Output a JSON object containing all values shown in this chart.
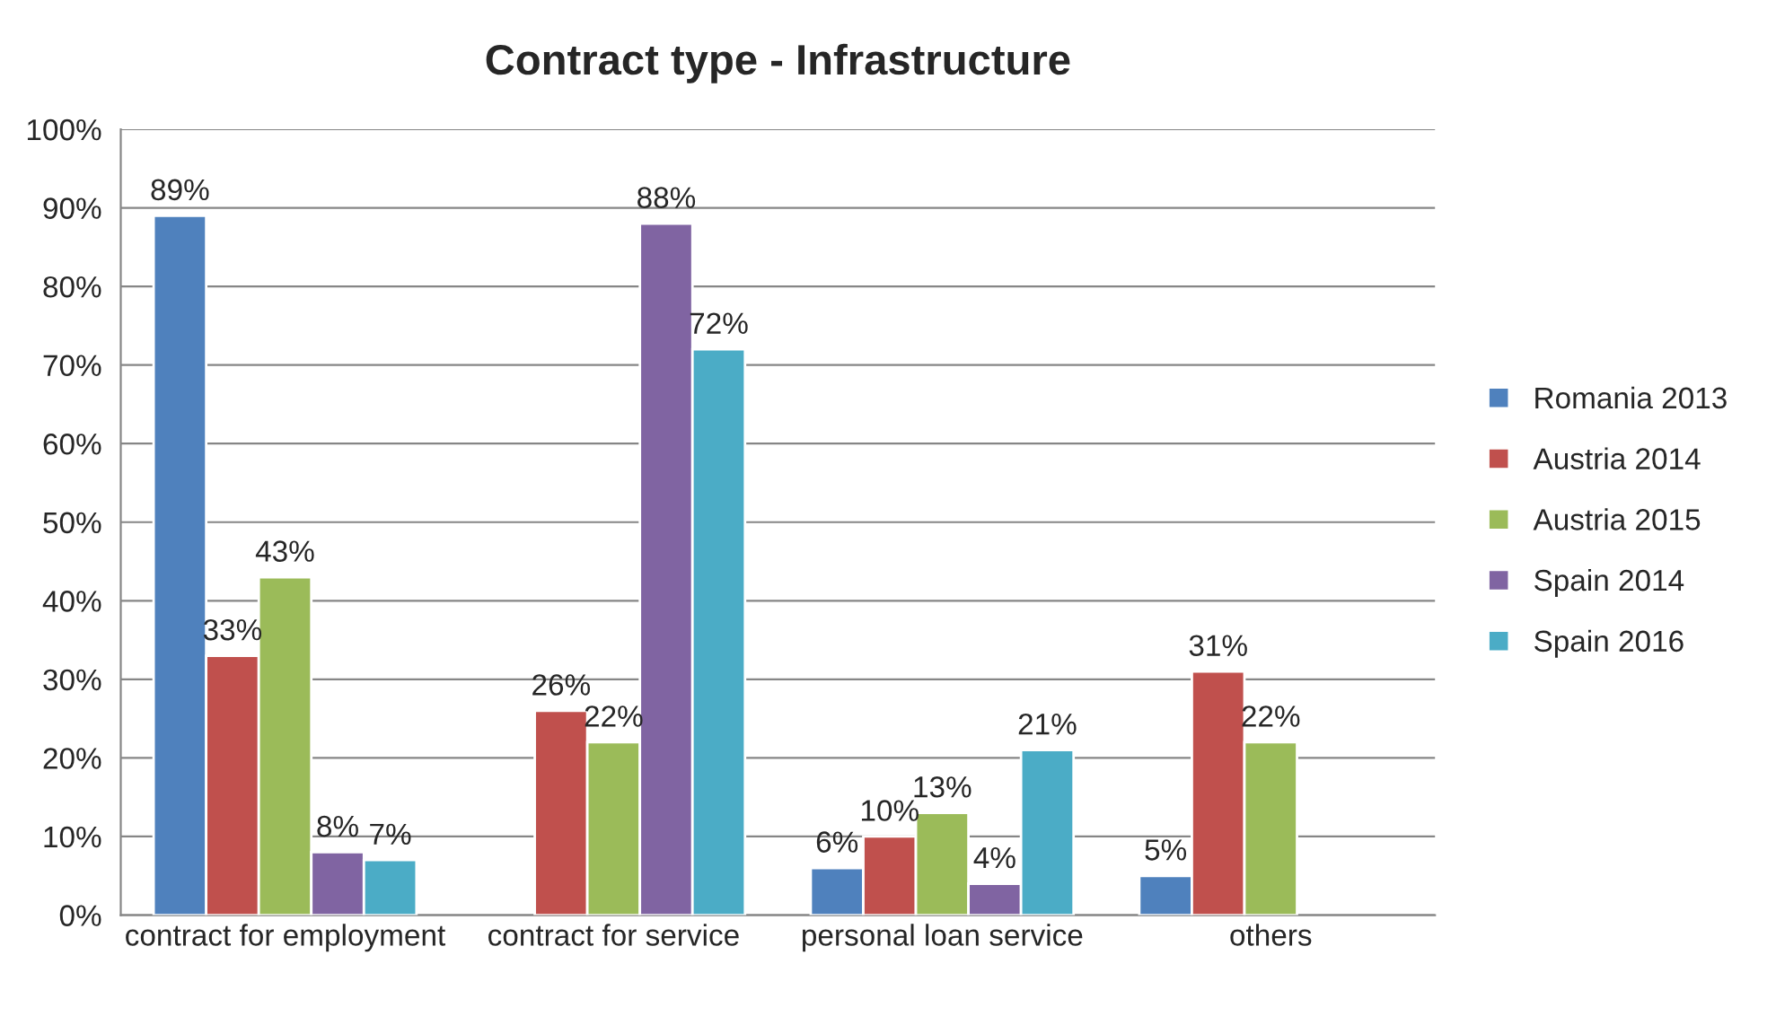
{
  "chart_data": {
    "type": "bar",
    "title": "Contract type - Infrastructure",
    "categories": [
      "contract for employment",
      "contract for service",
      "personal loan service",
      "others"
    ],
    "series": [
      {
        "name": "Romania 2013",
        "color": "#4f81bd",
        "values": [
          89,
          null,
          6,
          5
        ],
        "value_labels": [
          "89%",
          null,
          "6%",
          "5%"
        ]
      },
      {
        "name": "Austria 2014",
        "color": "#c0504d",
        "values": [
          33,
          26,
          10,
          31
        ],
        "value_labels": [
          "33%",
          "26%",
          "10%",
          "31%"
        ]
      },
      {
        "name": "Austria 2015",
        "color": "#9bbb59",
        "values": [
          43,
          22,
          13,
          22
        ],
        "value_labels": [
          "43%",
          "22%",
          "13%",
          "22%"
        ]
      },
      {
        "name": "Spain 2014",
        "color": "#8064a2",
        "values": [
          8,
          88,
          4,
          null
        ],
        "value_labels": [
          "8%",
          "88%",
          "4%",
          null
        ]
      },
      {
        "name": "Spain 2016",
        "color": "#4bacc6",
        "values": [
          7,
          72,
          21,
          null
        ],
        "value_labels": [
          "7%",
          "72%",
          "21%",
          null
        ]
      }
    ],
    "ylim": [
      0,
      100
    ],
    "yticks": [
      {
        "value": 0,
        "label": "0%"
      },
      {
        "value": 10,
        "label": "10%"
      },
      {
        "value": 20,
        "label": "20%"
      },
      {
        "value": 30,
        "label": "30%"
      },
      {
        "value": 40,
        "label": "40%"
      },
      {
        "value": 50,
        "label": "50%"
      },
      {
        "value": 60,
        "label": "60%"
      },
      {
        "value": 70,
        "label": "70%"
      },
      {
        "value": 80,
        "label": "80%"
      },
      {
        "value": 90,
        "label": "90%"
      },
      {
        "value": 100,
        "label": "100%"
      }
    ],
    "grid": "y",
    "legend": "right"
  }
}
